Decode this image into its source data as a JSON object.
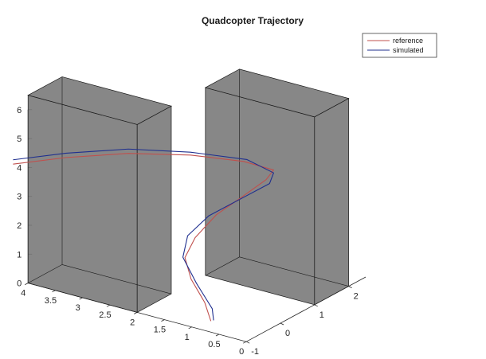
{
  "chart_data": {
    "type": "line3d",
    "title": "Quadcopter Trajectory",
    "xlabel": "",
    "ylabel": "",
    "zlabel": "",
    "xlim": [
      0,
      4
    ],
    "ylim": [
      -1,
      2.5
    ],
    "zlim": [
      0,
      6
    ],
    "x_ticks": [
      "4",
      "3.5",
      "3",
      "2.5",
      "2",
      "1.5",
      "1",
      "0.5",
      "0"
    ],
    "y_ticks": [
      "-1",
      "0",
      "1",
      "2"
    ],
    "z_ticks": [
      "0",
      "1",
      "2",
      "3",
      "4",
      "5",
      "6"
    ],
    "grid": false,
    "legend_position": "top-right",
    "series": [
      {
        "name": "reference",
        "color": "#c0504d",
        "points": [
          [
            0.9,
            -0.6,
            0.0
          ],
          [
            1.2,
            -0.3,
            0.3
          ],
          [
            1.7,
            0.1,
            0.6
          ],
          [
            2.0,
            0.4,
            1.0
          ],
          [
            2.0,
            0.7,
            1.5
          ],
          [
            1.8,
            1.0,
            2.2
          ],
          [
            1.5,
            1.3,
            2.8
          ],
          [
            1.2,
            1.5,
            3.4
          ],
          [
            1.0,
            1.4,
            3.9
          ],
          [
            1.3,
            1.0,
            4.3
          ],
          [
            1.9,
            0.4,
            4.6
          ],
          [
            2.6,
            -0.3,
            4.75
          ],
          [
            3.3,
            -1.0,
            4.7
          ],
          [
            3.9,
            -1.6,
            4.55
          ]
        ]
      },
      {
        "name": "simulated",
        "color": "#1f2f8f",
        "points": [
          [
            0.85,
            -0.6,
            0.05
          ],
          [
            1.0,
            -0.4,
            0.25
          ],
          [
            1.6,
            0.1,
            0.5
          ],
          [
            2.1,
            0.5,
            0.9
          ],
          [
            2.2,
            0.8,
            1.4
          ],
          [
            2.0,
            1.1,
            2.0
          ],
          [
            1.6,
            1.4,
            2.6
          ],
          [
            1.2,
            1.6,
            3.2
          ],
          [
            1.0,
            1.4,
            3.8
          ],
          [
            1.3,
            1.1,
            4.3
          ],
          [
            1.9,
            0.4,
            4.7
          ],
          [
            2.6,
            -0.3,
            4.9
          ],
          [
            3.3,
            -1.0,
            4.85
          ],
          [
            3.9,
            -1.6,
            4.7
          ]
        ]
      }
    ],
    "obstacles": [
      {
        "name": "obstacle-1",
        "color": "#7a7a7a",
        "x": [
          2.0,
          4.0
        ],
        "y": [
          -1.0,
          0.0
        ],
        "z": [
          0,
          6.5
        ]
      },
      {
        "name": "obstacle-2",
        "color": "#7a7a7a",
        "x": [
          0.0,
          2.0
        ],
        "y": [
          1.0,
          2.0
        ],
        "z": [
          0,
          6.5
        ]
      }
    ]
  }
}
